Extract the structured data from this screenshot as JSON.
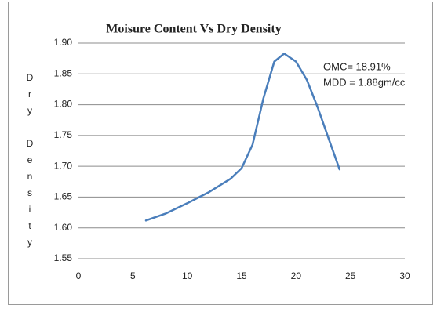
{
  "chart_data": {
    "type": "line",
    "title": "Moisure Content Vs Dry Density",
    "y_label": "Dry Density",
    "annotations": [
      "OMC= 18.91%",
      "MDD = 1.88gm/cc"
    ],
    "x": [
      6.2,
      8,
      10,
      12,
      14,
      15,
      16,
      17,
      18,
      18.91,
      20,
      21,
      22,
      23,
      24
    ],
    "series": [
      {
        "name": "Dry Density",
        "color": "#4a7ebb",
        "values": [
          1.612,
          1.623,
          1.64,
          1.658,
          1.68,
          1.697,
          1.735,
          1.81,
          1.87,
          1.883,
          1.87,
          1.84,
          1.795,
          1.745,
          1.695
        ]
      }
    ],
    "xlim": [
      0,
      30
    ],
    "xticks": [
      0,
      5,
      10,
      15,
      20,
      25,
      30
    ],
    "ylim": [
      1.55,
      1.9
    ],
    "yticks": [
      {
        "value": 1.55,
        "label": "1.55"
      },
      {
        "value": 1.6,
        "label": "1.60"
      },
      {
        "value": 1.65,
        "label": "1.65"
      },
      {
        "value": 1.7,
        "label": "1.70"
      },
      {
        "value": 1.75,
        "label": "1.75"
      },
      {
        "value": 1.8,
        "label": "1.80"
      },
      {
        "value": 1.85,
        "label": "1.85"
      },
      {
        "value": 1.9,
        "label": "1.90"
      }
    ],
    "grid": true
  }
}
